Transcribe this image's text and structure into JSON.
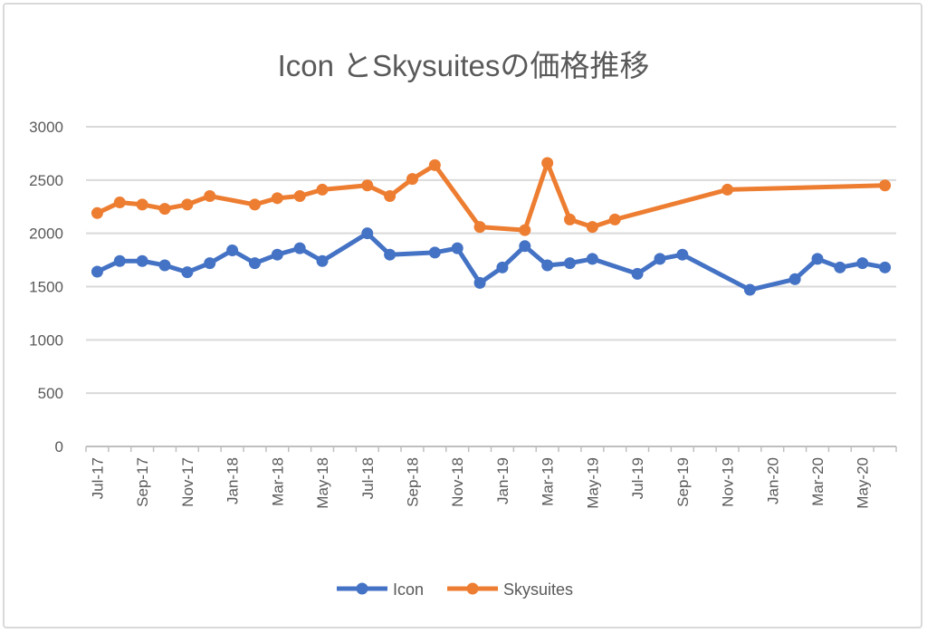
{
  "chart_data": {
    "type": "line",
    "title": "Icon とSkysuitesの価格推移",
    "xlabel": "",
    "ylabel": "",
    "x_unit": "months since Jul-17",
    "xlim": [
      -0.5,
      35.5
    ],
    "ylim": [
      0,
      3000
    ],
    "yticks": [
      0,
      500,
      1000,
      1500,
      2000,
      2500,
      3000
    ],
    "xtick_labels": [
      "Jul-17",
      "Sep-17",
      "Nov-17",
      "Jan-18",
      "Mar-18",
      "May-18",
      "Jul-18",
      "Sep-18",
      "Nov-18",
      "Jan-19",
      "Mar-19",
      "May-19",
      "Jul-19",
      "Sep-19",
      "Nov-19",
      "Jan-20",
      "Mar-20",
      "May-20"
    ],
    "grid": "horizontal",
    "legend_position": "bottom",
    "series": [
      {
        "name": "Icon",
        "color": "#4472c4",
        "x": [
          0,
          1,
          2,
          3,
          4,
          5,
          6,
          7,
          8,
          9,
          10,
          12,
          13,
          15,
          16,
          17,
          18,
          19,
          20,
          21,
          22,
          24,
          25,
          26,
          29,
          31,
          32,
          33,
          34,
          35
        ],
        "y": [
          1640,
          1740,
          1740,
          1700,
          1635,
          1720,
          1840,
          1720,
          1800,
          1860,
          1740,
          2000,
          1800,
          1820,
          1860,
          1535,
          1680,
          1880,
          1700,
          1720,
          1760,
          1620,
          1760,
          1800,
          1470,
          1570,
          1760,
          1680,
          1720,
          1680
        ]
      },
      {
        "name": "Skysuites",
        "color": "#ed7d31",
        "x": [
          0,
          1,
          2,
          3,
          4,
          5,
          7,
          8,
          9,
          10,
          12,
          13,
          14,
          15,
          17,
          19,
          20,
          21,
          22,
          23,
          28,
          35
        ],
        "y": [
          2190,
          2290,
          2270,
          2230,
          2270,
          2350,
          2270,
          2330,
          2350,
          2410,
          2450,
          2350,
          2510,
          2640,
          2060,
          2030,
          2660,
          2130,
          2060,
          2130,
          2410,
          2450
        ]
      }
    ]
  }
}
